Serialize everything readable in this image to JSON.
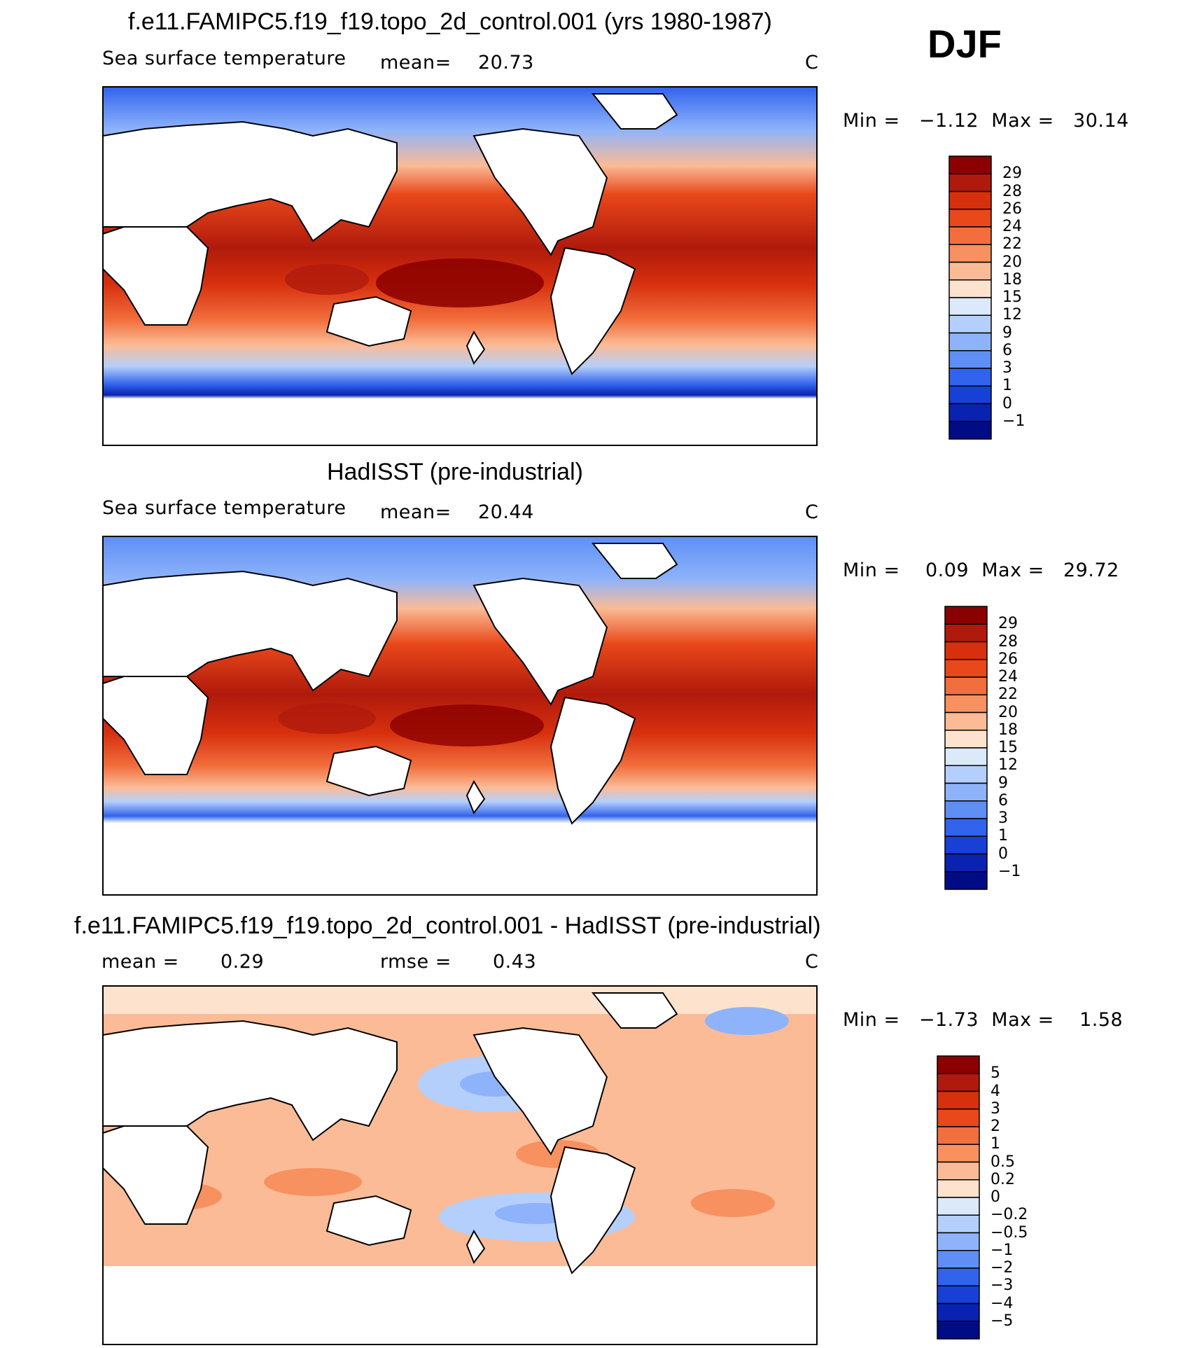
{
  "season": "DJF",
  "panels": [
    {
      "title": "f.e11.FAMIPC5.f19_f19.topo_2d_control.001 (yrs 1980-1987)",
      "left_label": "Sea surface temperature",
      "mean_label": "mean=",
      "mean_value": "20.73",
      "units": "C",
      "minmax_text": "Min =   −1.12  Max =   30.14",
      "colorbar_labels": [
        "29",
        "28",
        "26",
        "24",
        "22",
        "20",
        "18",
        "15",
        "12",
        "9",
        "6",
        "3",
        "1",
        "0",
        "−1"
      ],
      "colorbar_colors": [
        "#8b0000",
        "#b01a0c",
        "#d7300e",
        "#e8481a",
        "#f26e3c",
        "#f7915f",
        "#fbbb96",
        "#fde3cd",
        "#dbe9fb",
        "#b4cffb",
        "#8eb3fb",
        "#5f8ff5",
        "#3163ec",
        "#1640d6",
        "#0a22b0",
        "#000c86"
      ]
    },
    {
      "title": "HadISST (pre-industrial)",
      "left_label": "Sea surface temperature",
      "mean_label": "mean=",
      "mean_value": "20.44",
      "units": "C",
      "minmax_text": "Min =    0.09  Max =   29.72",
      "colorbar_labels": [
        "29",
        "28",
        "26",
        "24",
        "22",
        "20",
        "18",
        "15",
        "12",
        "9",
        "6",
        "3",
        "1",
        "0",
        "−1"
      ],
      "colorbar_colors": [
        "#8b0000",
        "#b01a0c",
        "#d7300e",
        "#e8481a",
        "#f26e3c",
        "#f7915f",
        "#fbbb96",
        "#fde3cd",
        "#dbe9fb",
        "#b4cffb",
        "#8eb3fb",
        "#5f8ff5",
        "#3163ec",
        "#1640d6",
        "#0a22b0",
        "#000c86"
      ]
    },
    {
      "title": "f.e11.FAMIPC5.f19_f19.topo_2d_control.001 - HadISST (pre-industrial)",
      "mean_label": "mean =",
      "mean_value": "0.29",
      "rmse_label": "rmse =",
      "rmse_value": "0.43",
      "units": "C",
      "minmax_text": "Min =   −1.73  Max =    1.58",
      "colorbar_labels": [
        "5",
        "4",
        "3",
        "2",
        "1",
        "0.5",
        "0.2",
        "0",
        "−0.2",
        "−0.5",
        "−1",
        "−2",
        "−3",
        "−4",
        "−5"
      ],
      "colorbar_colors": [
        "#8b0000",
        "#b01a0c",
        "#d7300e",
        "#e8481a",
        "#f26e3c",
        "#f7915f",
        "#fbbb96",
        "#fde3cd",
        "#dbe9fb",
        "#b4cffb",
        "#8eb3fb",
        "#5f8ff5",
        "#3163ec",
        "#1640d6",
        "#0a22b0",
        "#000c86"
      ]
    }
  ],
  "chart_data": [
    {
      "type": "heatmap",
      "title": "f.e11.FAMIPC5.f19_f19.topo_2d_control.001 (yrs 1980-1987)",
      "variable": "Sea surface temperature",
      "units": "C",
      "mean": 20.73,
      "min": -1.12,
      "max": 30.14,
      "contour_levels": [
        -1,
        0,
        1,
        3,
        6,
        9,
        12,
        15,
        18,
        20,
        22,
        24,
        26,
        28,
        29
      ],
      "legend_position": "right"
    },
    {
      "type": "heatmap",
      "title": "HadISST (pre-industrial)",
      "variable": "Sea surface temperature",
      "units": "C",
      "mean": 20.44,
      "min": 0.09,
      "max": 29.72,
      "contour_levels": [
        -1,
        0,
        1,
        3,
        6,
        9,
        12,
        15,
        18,
        20,
        22,
        24,
        26,
        28,
        29
      ],
      "legend_position": "right"
    },
    {
      "type": "heatmap",
      "title": "f.e11.FAMIPC5.f19_f19.topo_2d_control.001 - HadISST (pre-industrial)",
      "units": "C",
      "mean": 0.29,
      "rmse": 0.43,
      "min": -1.73,
      "max": 1.58,
      "contour_levels": [
        -5,
        -4,
        -3,
        -2,
        -1,
        -0.5,
        -0.2,
        0,
        0.2,
        0.5,
        1,
        2,
        3,
        4,
        5
      ],
      "legend_position": "right"
    }
  ]
}
